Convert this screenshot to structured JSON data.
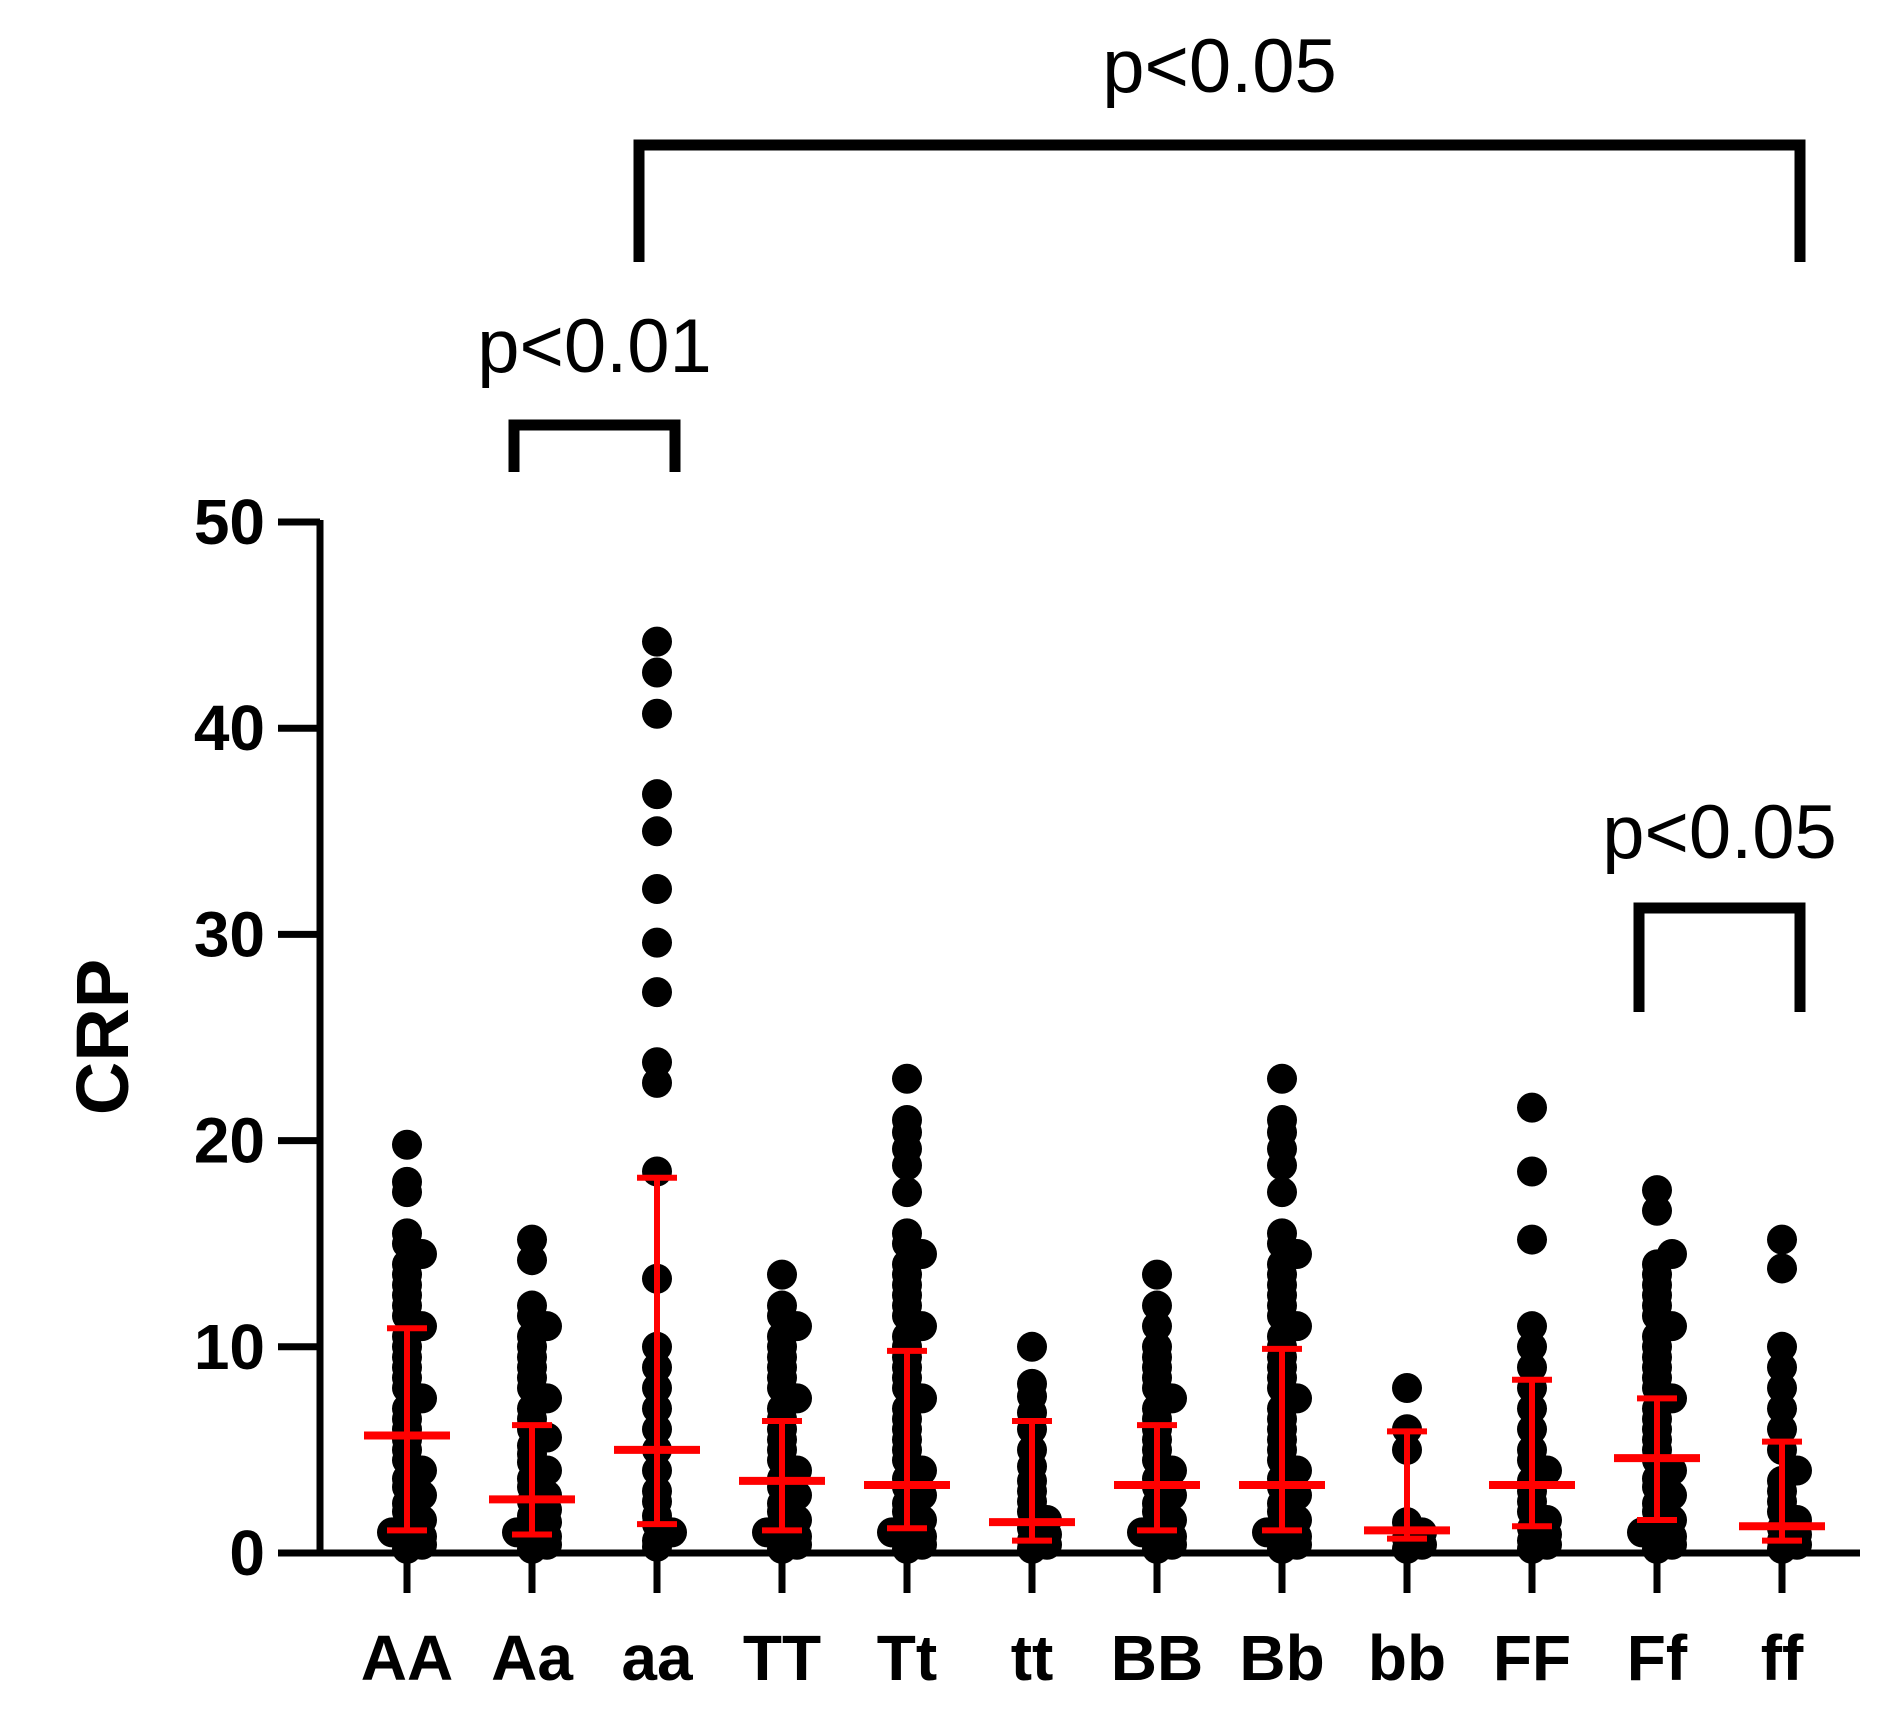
{
  "chart_data": {
    "type": "scatter",
    "subtype": "dot-plot with median and interquartile range",
    "ylabel": "CRP",
    "xlabel": "",
    "ylim": [
      0,
      50
    ],
    "yticks": [
      0,
      10,
      20,
      30,
      40,
      50
    ],
    "categories": [
      "AA",
      "Aa",
      "aa",
      "TT",
      "Tt",
      "tt",
      "BB",
      "Bb",
      "bb",
      "FF",
      "Ff",
      "ff"
    ],
    "groups": [
      {
        "name": "AA",
        "median": 5.7,
        "q1": 1.1,
        "q3": 10.9,
        "points": [
          0.2,
          0.4,
          0.6,
          0.8,
          1.0,
          1.3,
          1.6,
          2.0,
          2.4,
          2.8,
          3.2,
          3.6,
          4.0,
          4.5,
          5.0,
          5.5,
          6.0,
          6.5,
          7.0,
          7.5,
          8.0,
          8.5,
          9.0,
          9.5,
          10.0,
          10.5,
          11.0,
          11.5,
          12.0,
          12.5,
          13.0,
          13.5,
          14.0,
          14.5,
          15.0,
          15.5,
          17.5,
          18.0,
          19.8
        ]
      },
      {
        "name": "Aa",
        "median": 2.6,
        "q1": 0.9,
        "q3": 6.2,
        "points": [
          0.2,
          0.4,
          0.6,
          0.8,
          1.0,
          1.2,
          1.5,
          1.8,
          2.1,
          2.5,
          2.8,
          3.2,
          3.6,
          4.0,
          4.4,
          4.8,
          5.2,
          5.6,
          6.0,
          6.5,
          7.0,
          7.5,
          8.0,
          8.5,
          9.0,
          9.5,
          10.0,
          10.5,
          11.0,
          11.5,
          12.0,
          14.2,
          15.2
        ]
      },
      {
        "name": "aa",
        "median": 5.0,
        "q1": 1.4,
        "q3": 18.2,
        "points": [
          0.3,
          0.6,
          1.0,
          1.4,
          1.8,
          2.5,
          3.0,
          4.0,
          5.0,
          6.0,
          7.0,
          8.0,
          9.0,
          10.0,
          13.3,
          18.5,
          22.8,
          23.8,
          27.2,
          29.6,
          32.2,
          35.0,
          36.8,
          40.7,
          42.7,
          44.2
        ]
      },
      {
        "name": "TT",
        "median": 3.5,
        "q1": 1.1,
        "q3": 6.4,
        "points": [
          0.2,
          0.4,
          0.6,
          0.8,
          1.0,
          1.3,
          1.6,
          2.0,
          2.4,
          2.8,
          3.2,
          3.6,
          4.0,
          4.5,
          5.0,
          5.5,
          6.0,
          6.5,
          7.0,
          7.5,
          8.0,
          8.5,
          9.0,
          9.5,
          10.0,
          10.5,
          11.0,
          11.5,
          12.0,
          13.5
        ]
      },
      {
        "name": "Tt",
        "median": 3.3,
        "q1": 1.2,
        "q3": 9.8,
        "points": [
          0.2,
          0.4,
          0.6,
          0.8,
          1.0,
          1.3,
          1.6,
          2.0,
          2.4,
          2.8,
          3.2,
          3.6,
          4.0,
          4.5,
          5.0,
          5.5,
          6.0,
          6.5,
          7.0,
          7.5,
          8.0,
          8.5,
          9.0,
          9.5,
          10.0,
          10.5,
          11.0,
          11.5,
          12.0,
          12.5,
          13.0,
          13.5,
          14.0,
          14.5,
          15.0,
          15.5,
          17.5,
          18.8,
          19.6,
          20.4,
          21.0,
          23.0
        ]
      },
      {
        "name": "tt",
        "median": 1.5,
        "q1": 0.6,
        "q3": 6.4,
        "points": [
          0.2,
          0.4,
          0.6,
          0.9,
          1.2,
          1.6,
          2.0,
          2.5,
          3.0,
          3.5,
          4.2,
          5.0,
          6.0,
          6.8,
          7.6,
          8.2,
          10.0
        ]
      },
      {
        "name": "BB",
        "median": 3.3,
        "q1": 1.1,
        "q3": 6.2,
        "points": [
          0.2,
          0.4,
          0.6,
          0.8,
          1.0,
          1.3,
          1.6,
          2.0,
          2.4,
          2.8,
          3.2,
          3.6,
          4.0,
          4.5,
          5.0,
          5.5,
          6.0,
          6.5,
          7.0,
          7.5,
          8.0,
          8.5,
          9.0,
          9.5,
          10.0,
          11.0,
          12.0,
          13.5
        ]
      },
      {
        "name": "Bb",
        "median": 3.3,
        "q1": 1.1,
        "q3": 9.9,
        "points": [
          0.2,
          0.4,
          0.6,
          0.8,
          1.0,
          1.3,
          1.6,
          2.0,
          2.4,
          2.8,
          3.2,
          3.6,
          4.0,
          4.5,
          5.0,
          5.5,
          6.0,
          6.5,
          7.0,
          7.5,
          8.0,
          8.5,
          9.0,
          9.5,
          10.0,
          10.5,
          11.0,
          11.5,
          12.0,
          12.5,
          13.0,
          13.5,
          14.0,
          14.5,
          15.0,
          15.5,
          17.5,
          18.8,
          19.6,
          20.4,
          21.0,
          23.0
        ]
      },
      {
        "name": "bb",
        "median": 1.1,
        "q1": 0.7,
        "q3": 5.9,
        "points": [
          0.2,
          0.4,
          0.7,
          1.0,
          1.5,
          5.0,
          6.0,
          8.0
        ]
      },
      {
        "name": "FF",
        "median": 3.3,
        "q1": 1.3,
        "q3": 8.4,
        "points": [
          0.2,
          0.4,
          0.6,
          0.9,
          1.2,
          1.6,
          2.0,
          2.5,
          3.0,
          3.5,
          4.0,
          4.5,
          5.0,
          6.0,
          7.0,
          8.0,
          9.0,
          10.0,
          11.0,
          15.2,
          18.5,
          21.6
        ]
      },
      {
        "name": "Ff",
        "median": 4.6,
        "q1": 1.6,
        "q3": 7.5,
        "points": [
          0.2,
          0.4,
          0.6,
          0.8,
          1.0,
          1.3,
          1.6,
          2.0,
          2.4,
          2.8,
          3.2,
          3.6,
          4.0,
          4.5,
          5.0,
          5.5,
          6.0,
          6.5,
          7.0,
          7.5,
          8.0,
          8.5,
          9.0,
          9.5,
          10.0,
          10.5,
          11.0,
          11.5,
          12.0,
          12.5,
          13.0,
          13.5,
          14.0,
          14.5,
          16.6,
          17.6
        ]
      },
      {
        "name": "ff",
        "median": 1.3,
        "q1": 0.6,
        "q3": 5.4,
        "points": [
          0.2,
          0.4,
          0.6,
          0.9,
          1.2,
          1.6,
          2.0,
          2.5,
          3.0,
          3.5,
          4.0,
          5.0,
          6.0,
          7.0,
          8.0,
          9.0,
          10.0,
          13.8,
          15.2
        ]
      }
    ],
    "comparisons": [
      {
        "from": "Aa",
        "to": "aa",
        "label": "p<0.01"
      },
      {
        "from": "aa",
        "to": "ff",
        "label": "p<0.05"
      },
      {
        "from": "Ff",
        "to": "ff",
        "label": "p<0.05"
      }
    ],
    "colors": {
      "points": "#000000",
      "summary": "#ff0000",
      "axis": "#000000"
    }
  }
}
